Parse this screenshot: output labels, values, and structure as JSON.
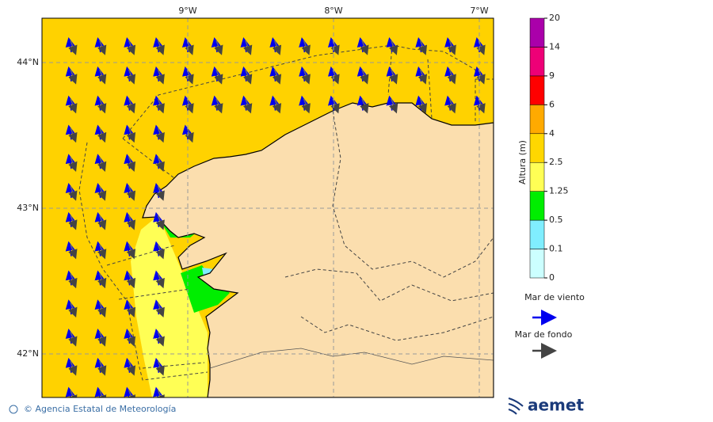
{
  "map": {
    "lon_labels": [
      "9°W",
      "8°W",
      "7°W"
    ],
    "lat_labels": [
      "44°N",
      "43°N",
      "42°N"
    ]
  },
  "legend": {
    "title": "Altura (m)",
    "levels": [
      0,
      0.1,
      0.5,
      1.25,
      2.5,
      4,
      6,
      9,
      14,
      20
    ],
    "colors": [
      "#ccffff",
      "#80eeff",
      "#00ee00",
      "#ffff55",
      "#ffd700",
      "#ffaa00",
      "#ff0000",
      "#ee0077",
      "#aa00aa"
    ],
    "wind_sea": "Mar de viento",
    "swell": "Mar de fondo"
  },
  "footer": {
    "credit": "© Agencia Estatal de Meteorología",
    "logo": "aemet"
  }
}
